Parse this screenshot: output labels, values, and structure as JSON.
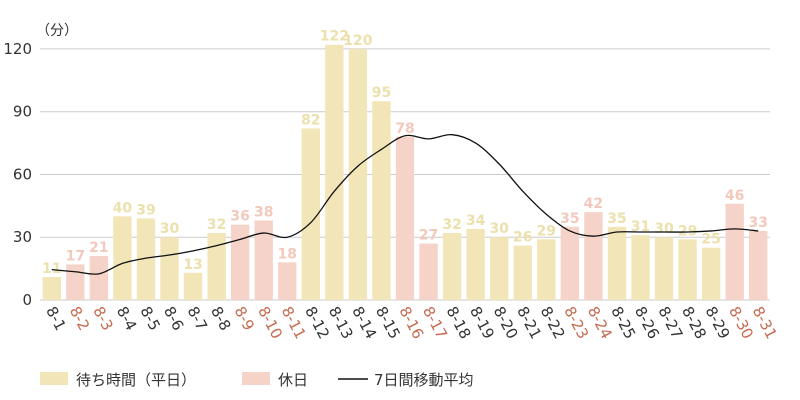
{
  "chart_data": {
    "type": "bar",
    "unit_label": "（分）",
    "y_ticks": [
      "0",
      "30",
      "60",
      "90",
      "120"
    ],
    "ylim": [
      0,
      130
    ],
    "grid": true,
    "legend_position": "bottom-left",
    "categories": [
      "8-1",
      "8-2",
      "8-3",
      "8-4",
      "8-5",
      "8-6",
      "8-7",
      "8-8",
      "8-9",
      "8-10",
      "8-11",
      "8-12",
      "8-13",
      "8-14",
      "8-15",
      "8-16",
      "8-17",
      "8-18",
      "8-19",
      "8-20",
      "8-21",
      "8-22",
      "8-23",
      "8-24",
      "8-25",
      "8-26",
      "8-27",
      "8-28",
      "8-29",
      "8-30",
      "8-31"
    ],
    "day_type": [
      "weekday",
      "holiday",
      "holiday",
      "weekday",
      "weekday",
      "weekday",
      "weekday",
      "weekday",
      "holiday",
      "holiday",
      "holiday",
      "weekday",
      "weekday",
      "weekday",
      "weekday",
      "holiday",
      "holiday",
      "weekday",
      "weekday",
      "weekday",
      "weekday",
      "weekday",
      "holiday",
      "holiday",
      "weekday",
      "weekday",
      "weekday",
      "weekday",
      "weekday",
      "holiday",
      "holiday"
    ],
    "values": [
      11,
      17,
      21,
      40,
      39,
      30,
      13,
      32,
      36,
      38,
      18,
      82,
      122,
      120,
      95,
      78,
      27,
      32,
      34,
      30,
      26,
      29,
      35,
      42,
      35,
      31,
      30,
      29,
      25,
      46,
      33
    ],
    "moving_average": {
      "name": "7日間移動平均",
      "values": [
        14.5,
        13.5,
        12.5,
        17.5,
        20,
        21.5,
        23.5,
        26,
        29,
        32,
        30,
        37,
        52,
        64,
        72,
        78.5,
        77,
        79,
        75,
        65,
        52,
        41,
        33,
        30.5,
        32.5,
        32.5,
        32.5,
        32.5,
        33,
        34,
        33
      ]
    },
    "series": [
      {
        "name": "待ち時間（平日）",
        "key": "weekday",
        "color": "#f2e6b8"
      },
      {
        "name": "休日",
        "key": "holiday",
        "color": "#f5d3c8"
      }
    ],
    "colors": {
      "weekday_bar": "#f2e6b8",
      "holiday_bar": "#f5d3c8",
      "weekday_label": "#ece0ad",
      "holiday_label": "#f2c9bc",
      "weekday_tick": "#333333",
      "holiday_tick": "#c46a4f",
      "line": "#111111",
      "grid": "#cccccc"
    }
  }
}
